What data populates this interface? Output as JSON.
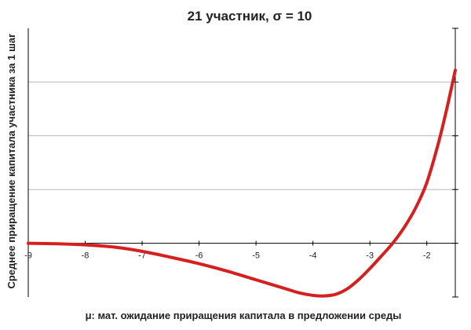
{
  "chart_data": {
    "type": "line",
    "title": "21 участник, σ = 10",
    "xlabel": "μ: мат. ожидание приращения капитала в предложении среды",
    "ylabel": "Среднее приращение капитала участника за 1 шаг",
    "xlim": [
      -9,
      -1.5
    ],
    "x_ticks": [
      -9,
      -8,
      -7,
      -6,
      -5,
      -4,
      -3,
      -2
    ],
    "ylim": [
      -1,
      4
    ],
    "y_tick_labels_shown": false,
    "grid": "horizontal",
    "legend": "none",
    "colors": {
      "line": "#d42020",
      "grid": "#b8b8b8",
      "axis": "#000000"
    },
    "series": [
      {
        "color": "#d42020",
        "points": [
          [
            -9.0,
            0.0
          ],
          [
            -8.5,
            -0.01
          ],
          [
            -8.0,
            -0.03
          ],
          [
            -7.5,
            -0.07
          ],
          [
            -7.0,
            -0.15
          ],
          [
            -6.5,
            -0.26
          ],
          [
            -6.0,
            -0.38
          ],
          [
            -5.5,
            -0.52
          ],
          [
            -5.0,
            -0.68
          ],
          [
            -4.5,
            -0.84
          ],
          [
            -4.25,
            -0.92
          ],
          [
            -4.0,
            -0.97
          ],
          [
            -3.8,
            -0.98
          ],
          [
            -3.6,
            -0.95
          ],
          [
            -3.4,
            -0.85
          ],
          [
            -3.2,
            -0.68
          ],
          [
            -3.0,
            -0.47
          ],
          [
            -2.8,
            -0.24
          ],
          [
            -2.6,
            0.0
          ],
          [
            -2.4,
            0.29
          ],
          [
            -2.2,
            0.65
          ],
          [
            -2.0,
            1.13
          ],
          [
            -1.8,
            1.85
          ],
          [
            -1.65,
            2.5
          ],
          [
            -1.5,
            3.22
          ]
        ]
      }
    ]
  }
}
